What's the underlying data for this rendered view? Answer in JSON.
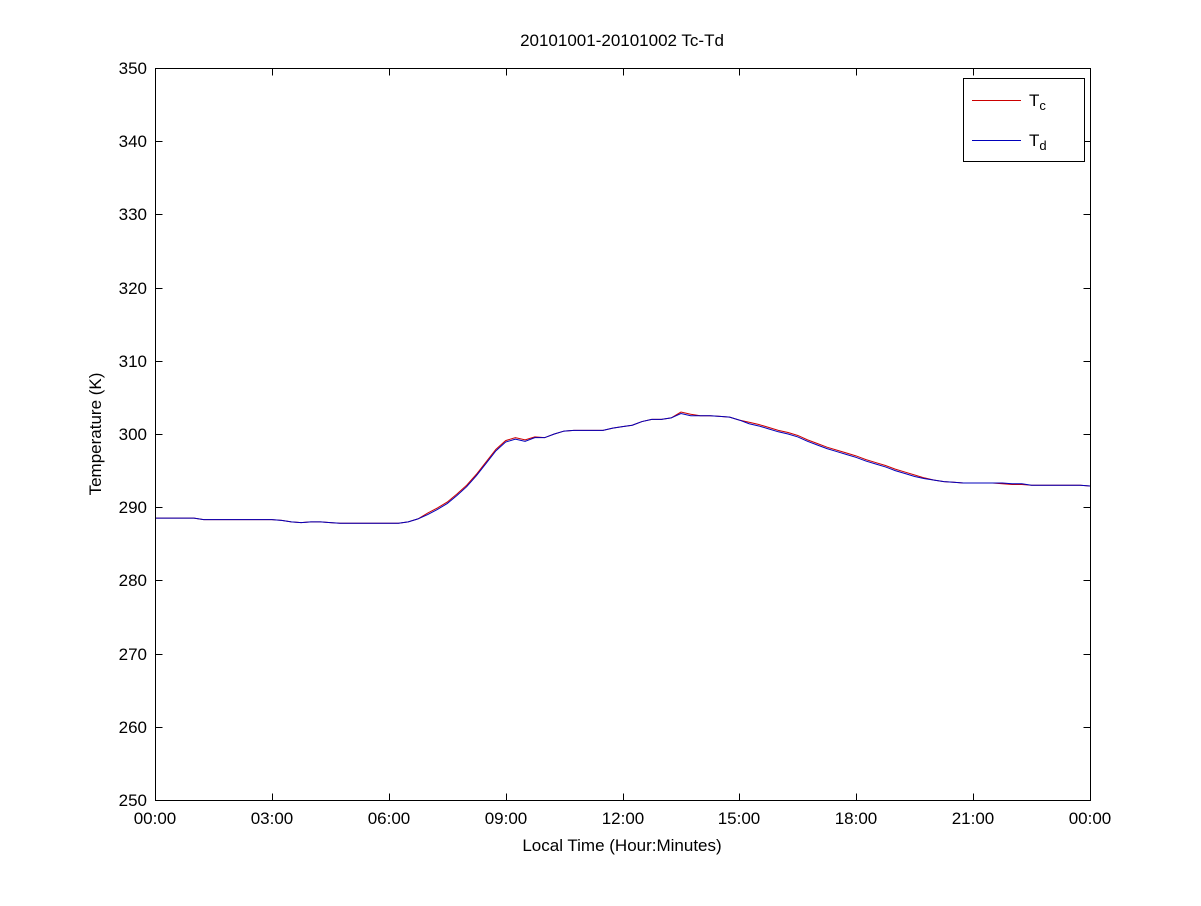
{
  "figure": {
    "background": "#ffffff"
  },
  "chart_data": {
    "type": "line",
    "title": "20101001-20101002 Tc-Td",
    "xlabel": "Local Time (Hour:Minutes)",
    "ylabel": "Temperature (K)",
    "xlim": [
      0,
      24
    ],
    "ylim": [
      250,
      350
    ],
    "xticks": [
      0,
      3,
      6,
      9,
      12,
      15,
      18,
      21,
      24
    ],
    "xtick_labels": [
      "00:00",
      "03:00",
      "06:00",
      "09:00",
      "12:00",
      "15:00",
      "18:00",
      "21:00",
      "00:00"
    ],
    "yticks": [
      250,
      260,
      270,
      280,
      290,
      300,
      310,
      320,
      330,
      340,
      350
    ],
    "ytick_labels": [
      "250",
      "260",
      "270",
      "280",
      "290",
      "300",
      "310",
      "320",
      "330",
      "340",
      "350"
    ],
    "grid": false,
    "axis_color": "#000000",
    "text_color": "#000000",
    "legend": {
      "position": "top-right",
      "border_color": "#000000",
      "background": "#ffffff"
    },
    "x": [
      0,
      0.25,
      0.5,
      0.75,
      1,
      1.25,
      1.5,
      1.75,
      2,
      2.25,
      2.5,
      2.75,
      3,
      3.25,
      3.5,
      3.75,
      4,
      4.25,
      4.5,
      4.75,
      5,
      5.25,
      5.5,
      5.75,
      6,
      6.25,
      6.5,
      6.75,
      7,
      7.25,
      7.5,
      7.75,
      8,
      8.25,
      8.5,
      8.75,
      9,
      9.25,
      9.5,
      9.75,
      10,
      10.25,
      10.5,
      10.75,
      11,
      11.25,
      11.5,
      11.75,
      12,
      12.25,
      12.5,
      12.75,
      13,
      13.25,
      13.5,
      13.75,
      14,
      14.25,
      14.5,
      14.75,
      15,
      15.25,
      15.5,
      15.75,
      16,
      16.25,
      16.5,
      16.75,
      17,
      17.25,
      17.5,
      17.75,
      18,
      18.25,
      18.5,
      18.75,
      19,
      19.25,
      19.5,
      19.75,
      20,
      20.25,
      20.5,
      20.75,
      21,
      21.25,
      21.5,
      21.75,
      22,
      22.25,
      22.5,
      22.75,
      23,
      23.25,
      23.5,
      23.75,
      24
    ],
    "series": [
      {
        "name": "Tc",
        "legend_main": "T",
        "legend_sub": "c",
        "color": "#cc0000",
        "values": [
          288.5,
          288.5,
          288.5,
          288.5,
          288.5,
          288.3,
          288.3,
          288.3,
          288.3,
          288.3,
          288.3,
          288.3,
          288.3,
          288.2,
          288.0,
          287.9,
          288.0,
          288.0,
          287.9,
          287.8,
          287.8,
          287.8,
          287.8,
          287.8,
          287.8,
          287.8,
          288.0,
          288.4,
          289.2,
          289.9,
          290.7,
          291.8,
          293.0,
          294.5,
          296.2,
          297.9,
          299.1,
          299.5,
          299.2,
          299.6,
          299.5,
          300.0,
          300.4,
          300.5,
          300.5,
          300.5,
          300.5,
          300.8,
          301.0,
          301.2,
          301.7,
          302.0,
          302.0,
          302.2,
          303.0,
          302.7,
          302.5,
          302.5,
          302.4,
          302.3,
          301.9,
          301.6,
          301.3,
          300.9,
          300.5,
          300.2,
          299.8,
          299.2,
          298.7,
          298.2,
          297.8,
          297.4,
          297.0,
          296.5,
          296.1,
          295.7,
          295.2,
          294.8,
          294.4,
          294.0,
          293.7,
          293.5,
          293.4,
          293.3,
          293.3,
          293.3,
          293.3,
          293.2,
          293.1,
          293.1,
          293.0,
          293.0,
          293.0,
          293.0,
          293.0,
          293.0,
          292.9
        ]
      },
      {
        "name": "Td",
        "legend_main": "T",
        "legend_sub": "d",
        "color": "#0000bb",
        "values": [
          288.5,
          288.5,
          288.5,
          288.5,
          288.5,
          288.3,
          288.3,
          288.3,
          288.3,
          288.3,
          288.3,
          288.3,
          288.3,
          288.2,
          288.0,
          287.9,
          288.0,
          288.0,
          287.9,
          287.8,
          287.8,
          287.8,
          287.8,
          287.8,
          287.8,
          287.8,
          288.0,
          288.4,
          289.0,
          289.7,
          290.5,
          291.6,
          292.8,
          294.3,
          296.0,
          297.7,
          298.9,
          299.3,
          299.0,
          299.5,
          299.5,
          300.0,
          300.4,
          300.5,
          300.5,
          300.5,
          300.5,
          300.8,
          301.0,
          301.2,
          301.7,
          302.0,
          302.0,
          302.2,
          302.8,
          302.5,
          302.5,
          302.5,
          302.4,
          302.3,
          301.9,
          301.4,
          301.1,
          300.7,
          300.3,
          300.0,
          299.6,
          299.0,
          298.5,
          298.0,
          297.6,
          297.2,
          296.8,
          296.3,
          295.9,
          295.5,
          295.0,
          294.6,
          294.2,
          293.9,
          293.7,
          293.5,
          293.4,
          293.3,
          293.3,
          293.3,
          293.3,
          293.3,
          293.2,
          293.2,
          293.0,
          293.0,
          293.0,
          293.0,
          293.0,
          293.0,
          292.9
        ]
      }
    ]
  }
}
